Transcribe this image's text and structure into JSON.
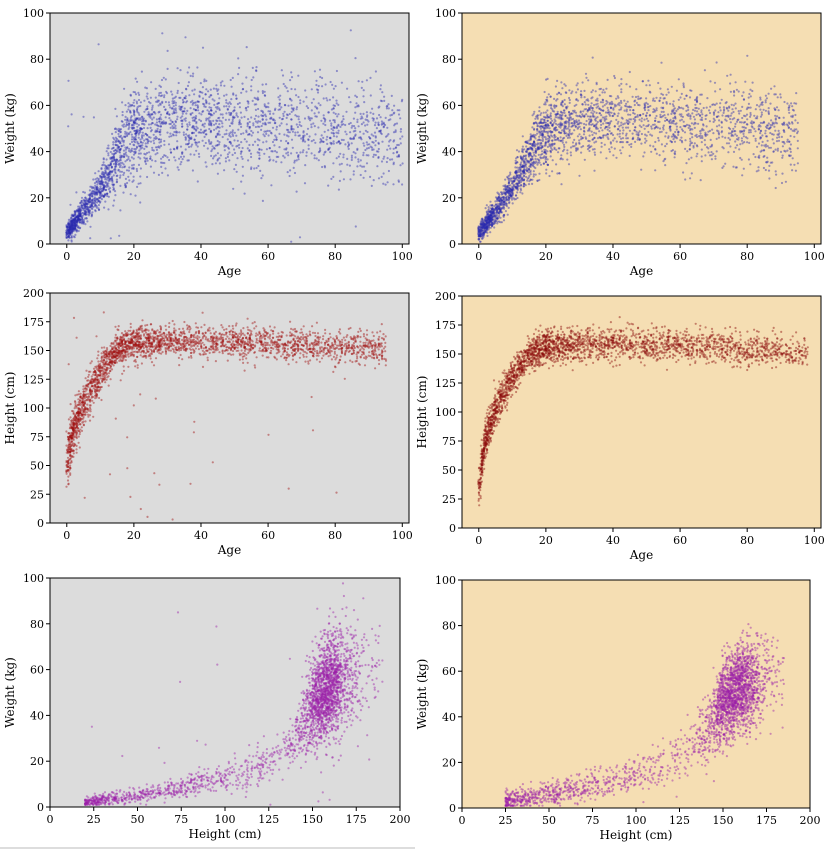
{
  "chart_data": [
    {
      "id": "a",
      "type": "scatter",
      "background": "#dcdcdc",
      "point_color": "#2b2bb0",
      "xlabel": "Age",
      "ylabel": "Weight (kg)",
      "xlim": [
        -5,
        102
      ],
      "ylim": [
        0,
        100
      ],
      "xticks": [
        0,
        20,
        40,
        60,
        80,
        100
      ],
      "yticks": [
        0,
        20,
        40,
        60,
        80,
        100
      ],
      "trend": [
        [
          0,
          5
        ],
        [
          5,
          14
        ],
        [
          10,
          24
        ],
        [
          15,
          38
        ],
        [
          20,
          48
        ],
        [
          30,
          52
        ],
        [
          40,
          53
        ],
        [
          60,
          51
        ],
        [
          80,
          48
        ],
        [
          100,
          46
        ]
      ],
      "spread": [
        [
          0,
          2
        ],
        [
          5,
          3
        ],
        [
          10,
          4
        ],
        [
          15,
          7
        ],
        [
          20,
          10
        ],
        [
          100,
          11
        ]
      ],
      "n_points": 2600,
      "x_max": 100,
      "outlier_rate": 0.012
    },
    {
      "id": "b",
      "type": "scatter",
      "background": "#f5deb3",
      "point_color": "#2b2bb0",
      "xlabel": "Age",
      "ylabel": "Weight (kg)",
      "xlim": [
        -5,
        102
      ],
      "ylim": [
        0,
        100
      ],
      "xticks": [
        0,
        20,
        40,
        60,
        80,
        100
      ],
      "yticks": [
        0,
        20,
        40,
        60,
        80,
        100
      ],
      "trend": [
        [
          0,
          5
        ],
        [
          5,
          14
        ],
        [
          10,
          24
        ],
        [
          15,
          38
        ],
        [
          20,
          48
        ],
        [
          30,
          53
        ],
        [
          40,
          54
        ],
        [
          60,
          52
        ],
        [
          80,
          50
        ],
        [
          100,
          48
        ]
      ],
      "spread": [
        [
          0,
          2
        ],
        [
          5,
          3
        ],
        [
          10,
          4
        ],
        [
          15,
          6
        ],
        [
          20,
          8
        ],
        [
          100,
          9
        ]
      ],
      "n_points": 2600,
      "x_max": 95,
      "outlier_rate": 0.0
    },
    {
      "id": "c",
      "type": "scatter",
      "background": "#dcdcdc",
      "point_color": "#a01010",
      "xlabel": "Age",
      "ylabel": "Height (cm)",
      "xlim": [
        -5,
        102
      ],
      "ylim": [
        0,
        200
      ],
      "xticks": [
        0,
        20,
        40,
        60,
        80,
        100
      ],
      "yticks": [
        0,
        25,
        50,
        75,
        100,
        125,
        150,
        175,
        200
      ],
      "trend": [
        [
          0,
          55
        ],
        [
          2,
          80
        ],
        [
          5,
          103
        ],
        [
          10,
          130
        ],
        [
          15,
          150
        ],
        [
          20,
          157
        ],
        [
          40,
          158
        ],
        [
          60,
          156
        ],
        [
          80,
          154
        ],
        [
          100,
          150
        ]
      ],
      "spread": [
        [
          0,
          10
        ],
        [
          5,
          10
        ],
        [
          10,
          10
        ],
        [
          15,
          8
        ],
        [
          20,
          7
        ],
        [
          100,
          7
        ]
      ],
      "n_points": 2600,
      "x_max": 95,
      "outlier_rate": 0.012
    },
    {
      "id": "d",
      "type": "scatter",
      "background": "#f5deb3",
      "point_color": "#8b0a0a",
      "xlabel": "Age",
      "ylabel": "Height (cm)",
      "xlim": [
        -5,
        102
      ],
      "ylim": [
        0,
        200
      ],
      "xticks": [
        0,
        20,
        40,
        60,
        80,
        100
      ],
      "yticks": [
        0,
        25,
        50,
        75,
        100,
        125,
        150,
        175,
        200
      ],
      "trend": [
        [
          0,
          35
        ],
        [
          2,
          78
        ],
        [
          5,
          103
        ],
        [
          10,
          130
        ],
        [
          15,
          150
        ],
        [
          20,
          157
        ],
        [
          40,
          159
        ],
        [
          60,
          157
        ],
        [
          80,
          154
        ],
        [
          100,
          152
        ]
      ],
      "spread": [
        [
          0,
          8
        ],
        [
          5,
          8
        ],
        [
          10,
          8
        ],
        [
          15,
          7
        ],
        [
          20,
          7
        ],
        [
          100,
          7
        ]
      ],
      "n_points": 2600,
      "x_max": 98,
      "outlier_rate": 0.0
    },
    {
      "id": "e",
      "type": "scatter",
      "background": "#dcdcdc",
      "point_color": "#9b1fa8",
      "xlabel": "Height (cm)",
      "ylabel": "Weight (kg)",
      "xlim": [
        0,
        200
      ],
      "ylim": [
        0,
        100
      ],
      "xticks": [
        0,
        25,
        50,
        75,
        100,
        125,
        150,
        175,
        200
      ],
      "yticks": [
        0,
        20,
        40,
        60,
        80,
        100
      ],
      "trend": [
        [
          20,
          2
        ],
        [
          50,
          5
        ],
        [
          75,
          9
        ],
        [
          100,
          13
        ],
        [
          125,
          20
        ],
        [
          140,
          30
        ],
        [
          150,
          45
        ],
        [
          160,
          53
        ],
        [
          175,
          58
        ],
        [
          185,
          60
        ]
      ],
      "spread": [
        [
          20,
          1
        ],
        [
          100,
          3
        ],
        [
          140,
          6
        ],
        [
          150,
          9
        ],
        [
          160,
          11
        ],
        [
          185,
          12
        ]
      ],
      "x_range": [
        20,
        190
      ],
      "x_mode": [
        158,
        7
      ],
      "n_points": 2600,
      "outlier_rate": 0.012
    },
    {
      "id": "f",
      "type": "scatter",
      "background": "#f5deb3",
      "point_color": "#9b1fa8",
      "xlabel": "Height (cm)",
      "ylabel": "Weight (kg)",
      "xlim": [
        0,
        200
      ],
      "ylim": [
        0,
        100
      ],
      "xticks": [
        0,
        25,
        50,
        75,
        100,
        125,
        150,
        175,
        200
      ],
      "yticks": [
        0,
        20,
        40,
        60,
        80,
        100
      ],
      "trend": [
        [
          25,
          3
        ],
        [
          50,
          6
        ],
        [
          75,
          10
        ],
        [
          100,
          14
        ],
        [
          125,
          22
        ],
        [
          140,
          33
        ],
        [
          150,
          46
        ],
        [
          160,
          53
        ],
        [
          175,
          56
        ],
        [
          185,
          57
        ]
      ],
      "spread": [
        [
          25,
          2
        ],
        [
          100,
          4
        ],
        [
          140,
          7
        ],
        [
          150,
          9
        ],
        [
          160,
          10
        ],
        [
          185,
          10
        ]
      ],
      "x_range": [
        25,
        185
      ],
      "x_mode": [
        157,
        8
      ],
      "n_points": 2600,
      "outlier_rate": 0.0
    }
  ]
}
